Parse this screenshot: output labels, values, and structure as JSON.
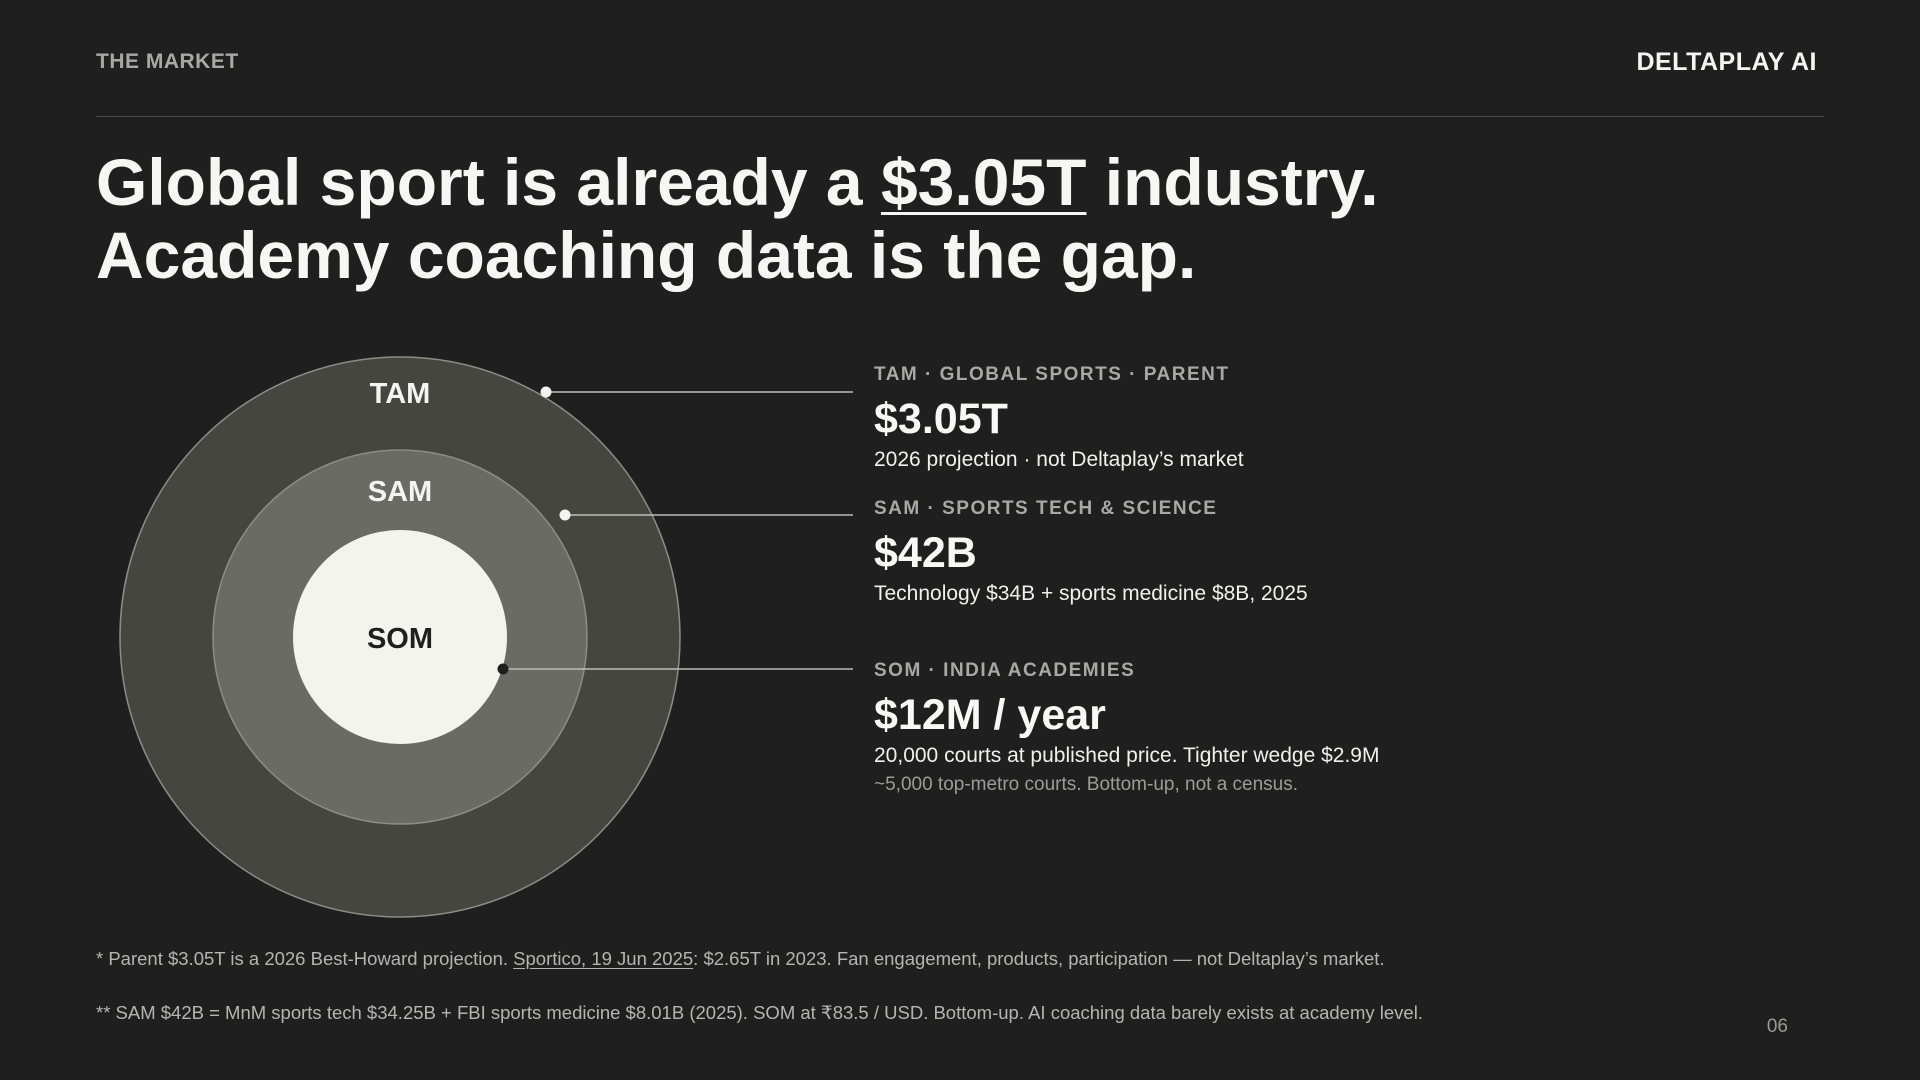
{
  "header": {
    "section": "THE MARKET",
    "brand": "DELTAPLAY AI"
  },
  "headline": {
    "line1_pre": "Global sport is already a ",
    "line1_highlight": "$3.05T",
    "line1_post": " industry.",
    "line2": "Academy coaching data is the gap."
  },
  "diagram": {
    "rings": [
      "TAM",
      "SAM",
      "SOM"
    ],
    "colors": {
      "tam_fill": "#464641",
      "sam_fill": "#6b6b65",
      "som_fill": "#f4f4ef",
      "ring_stroke": "#8d8d87",
      "leader": "#bdbdb7"
    }
  },
  "segments": [
    {
      "eyebrow": "TAM · GLOBAL SPORTS · PARENT",
      "value": "$3.05T",
      "description": "2026 projection · not Deltaplay’s market"
    },
    {
      "eyebrow": "SAM · SPORTS TECH & SCIENCE",
      "value": "$42B",
      "description": "Technology $34B + sports medicine $8B, 2025"
    },
    {
      "eyebrow": "SOM · INDIA ACADEMIES",
      "value": "$12M / year",
      "description": "20,000 courts at published price. Tighter wedge $2.9M",
      "note": "~5,000 top-metro courts. Bottom-up, not a census."
    }
  ],
  "footnotes": {
    "f1_pre": "* Parent $3.05T is a 2026 Best-Howard projection. ",
    "f1_link": "Sportico, 19 Jun 2025",
    "f1_post": ": $2.65T in 2023. Fan engagement, products, participation — not Deltaplay’s market.",
    "f2": "** SAM $42B = MnM sports tech $34.25B + FBI sports medicine $8.01B (2025). SOM at ₹83.5 / USD. Bottom-up. AI coaching data barely exists at academy level."
  },
  "page_number": "06"
}
